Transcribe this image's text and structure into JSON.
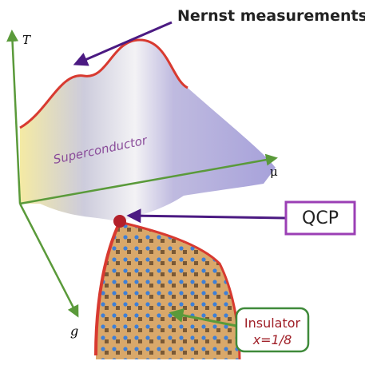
{
  "labels": {
    "nernst": "Nernst measurements",
    "t_axis": "T",
    "mu_axis": "μ",
    "g_axis": "g",
    "superconductor": "Superconductor",
    "qcp": "QCP",
    "insulator": "Insulator",
    "doping": "x=1/8"
  }
}
